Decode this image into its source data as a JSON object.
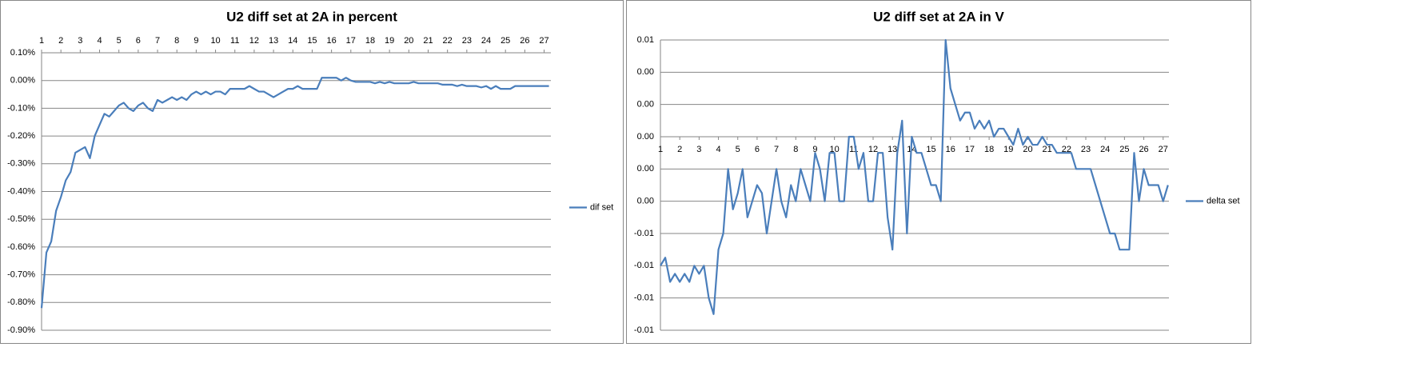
{
  "chart_data": [
    {
      "type": "line",
      "title": "U2 diff set at 2A in percent",
      "x": [
        1,
        1.25,
        1.5,
        1.75,
        2,
        2.25,
        2.5,
        2.75,
        3,
        3.25,
        3.5,
        3.75,
        4,
        4.25,
        4.5,
        4.75,
        5,
        5.25,
        5.5,
        5.75,
        6,
        6.25,
        6.5,
        6.75,
        7,
        7.25,
        7.5,
        7.75,
        8,
        8.25,
        8.5,
        8.75,
        9,
        9.25,
        9.5,
        9.75,
        10,
        10.25,
        10.5,
        10.75,
        11,
        11.25,
        11.5,
        11.75,
        12,
        12.25,
        12.5,
        12.75,
        13,
        13.25,
        13.5,
        13.75,
        14,
        14.25,
        14.5,
        14.75,
        15,
        15.25,
        15.5,
        15.75,
        16,
        16.25,
        16.5,
        16.75,
        17,
        17.25,
        17.5,
        17.75,
        18,
        18.25,
        18.5,
        18.75,
        19,
        19.25,
        19.5,
        19.75,
        20,
        20.25,
        20.5,
        20.75,
        21,
        21.25,
        21.5,
        21.75,
        22,
        22.25,
        22.5,
        22.75,
        23,
        23.25,
        23.5,
        23.75,
        24,
        24.25,
        24.5,
        24.75,
        25,
        25.25,
        25.5,
        25.75,
        26,
        26.25,
        26.5,
        26.75,
        27,
        27.25
      ],
      "series": [
        {
          "name": "dif set",
          "color": "#4a7ebb",
          "values": [
            -0.82,
            -0.62,
            -0.58,
            -0.47,
            -0.42,
            -0.36,
            -0.33,
            -0.26,
            -0.25,
            -0.24,
            -0.28,
            -0.2,
            -0.16,
            -0.12,
            -0.13,
            -0.11,
            -0.09,
            -0.08,
            -0.1,
            -0.11,
            -0.09,
            -0.08,
            -0.1,
            -0.11,
            -0.07,
            -0.08,
            -0.07,
            -0.06,
            -0.07,
            -0.06,
            -0.07,
            -0.05,
            -0.04,
            -0.05,
            -0.04,
            -0.05,
            -0.04,
            -0.04,
            -0.05,
            -0.03,
            -0.03,
            -0.03,
            -0.03,
            -0.02,
            -0.03,
            -0.04,
            -0.04,
            -0.05,
            -0.06,
            -0.05,
            -0.04,
            -0.03,
            -0.03,
            -0.02,
            -0.03,
            -0.03,
            -0.03,
            -0.03,
            0.01,
            0.01,
            0.01,
            0.01,
            0.0,
            0.01,
            0,
            -0.005,
            -0.005,
            -0.005,
            -0.005,
            -0.01,
            -0.005,
            -0.01,
            -0.005,
            -0.01,
            -0.01,
            -0.01,
            -0.01,
            -0.005,
            -0.01,
            -0.01,
            -0.01,
            -0.01,
            -0.01,
            -0.015,
            -0.015,
            -0.015,
            -0.02,
            -0.015,
            -0.02,
            -0.02,
            -0.02,
            -0.025,
            -0.02,
            -0.03,
            -0.02,
            -0.03,
            -0.03,
            -0.03,
            -0.02,
            -0.02,
            -0.02,
            -0.02,
            -0.02,
            -0.02,
            -0.02,
            -0.02
          ]
        }
      ],
      "xlim": [
        1,
        27.35
      ],
      "xticks": [
        1,
        2,
        3,
        4,
        5,
        6,
        7,
        8,
        9,
        10,
        11,
        12,
        13,
        14,
        15,
        16,
        17,
        18,
        19,
        20,
        21,
        22,
        23,
        24,
        25,
        26,
        27
      ],
      "x_axis_position": "top",
      "ylim": [
        -0.9,
        0.1
      ],
      "yticks": [
        {
          "value": 0.1,
          "label": "0.10%"
        },
        {
          "value": 0,
          "label": "0.00%"
        },
        {
          "value": -0.1,
          "label": "-0.10%"
        },
        {
          "value": -0.2,
          "label": "-0.20%"
        },
        {
          "value": -0.3,
          "label": "-0.30%"
        },
        {
          "value": -0.4,
          "label": "-0.40%"
        },
        {
          "value": -0.5,
          "label": "-0.50%"
        },
        {
          "value": -0.6,
          "label": "-0.60%"
        },
        {
          "value": -0.7,
          "label": "-0.70%"
        },
        {
          "value": -0.8,
          "label": "-0.80%"
        },
        {
          "value": -0.9,
          "label": "-0.90%"
        }
      ],
      "grid": true,
      "legend": "right"
    },
    {
      "type": "line",
      "title": "U2 diff set at 2A in V",
      "x": [
        1,
        1.25,
        1.5,
        1.75,
        2,
        2.25,
        2.5,
        2.75,
        3,
        3.25,
        3.5,
        3.75,
        4,
        4.25,
        4.5,
        4.75,
        5,
        5.25,
        5.5,
        5.75,
        6,
        6.25,
        6.5,
        6.75,
        7,
        7.25,
        7.5,
        7.75,
        8,
        8.25,
        8.5,
        8.75,
        9,
        9.25,
        9.5,
        9.75,
        10,
        10.25,
        10.5,
        10.75,
        11,
        11.25,
        11.5,
        11.75,
        12,
        12.25,
        12.5,
        12.75,
        13,
        13.25,
        13.5,
        13.75,
        14,
        14.25,
        14.5,
        14.75,
        15,
        15.25,
        15.5,
        15.75,
        16,
        16.25,
        16.5,
        16.75,
        17,
        17.25,
        17.5,
        17.75,
        18,
        18.25,
        18.5,
        18.75,
        19,
        19.25,
        19.5,
        19.75,
        20,
        20.25,
        20.5,
        20.75,
        21,
        21.25,
        21.5,
        21.75,
        22,
        22.25,
        22.5,
        22.75,
        23,
        23.25,
        23.5,
        23.75,
        24,
        24.25,
        24.5,
        24.75,
        25,
        25.25,
        25.5,
        25.75,
        26,
        26.25,
        26.5,
        26.75,
        27,
        27.25
      ],
      "series": [
        {
          "name": "delta set",
          "color": "#4a7ebb",
          "values": [
            -0.008,
            -0.0075,
            -0.009,
            -0.0085,
            -0.009,
            -0.0085,
            -0.009,
            -0.008,
            -0.0085,
            -0.008,
            -0.01,
            -0.011,
            -0.007,
            -0.006,
            -0.002,
            -0.0045,
            -0.0035,
            -0.002,
            -0.005,
            -0.004,
            -0.003,
            -0.0035,
            -0.006,
            -0.004,
            -0.002,
            -0.004,
            -0.005,
            -0.003,
            -0.004,
            -0.002,
            -0.003,
            -0.004,
            -0.001,
            -0.002,
            -0.004,
            -0.001,
            -0.001,
            -0.004,
            -0.004,
            0,
            0,
            -0.002,
            -0.001,
            -0.004,
            -0.004,
            -0.001,
            -0.001,
            -0.005,
            -0.007,
            -0.001,
            0.001,
            -0.006,
            0,
            -0.001,
            -0.001,
            -0.002,
            -0.003,
            -0.003,
            -0.004,
            0.006,
            0.003,
            0.002,
            0.001,
            0.0015,
            0.0015,
            0.0005,
            0.001,
            0.0005,
            0.001,
            0,
            0.0005,
            0.0005,
            0,
            -0.0005,
            0.0005,
            -0.0005,
            0,
            -0.0005,
            -0.0005,
            0,
            -0.0005,
            -0.0005,
            -0.001,
            -0.001,
            -0.001,
            -0.001,
            -0.002,
            -0.002,
            -0.002,
            -0.002,
            -0.003,
            -0.004,
            -0.005,
            -0.006,
            -0.006,
            -0.007,
            -0.007,
            -0.007,
            -0.001,
            -0.004,
            -0.002,
            -0.003,
            -0.003,
            -0.003,
            -0.004,
            -0.003
          ]
        }
      ],
      "xlim": [
        1,
        27.3
      ],
      "xticks": [
        1,
        2,
        3,
        4,
        5,
        6,
        7,
        8,
        9,
        10,
        11,
        12,
        13,
        14,
        15,
        16,
        17,
        18,
        19,
        20,
        21,
        22,
        23,
        24,
        25,
        26,
        27
      ],
      "x_axis_position": "zero",
      "ylim": [
        -0.012,
        0.006
      ],
      "yticks": [
        {
          "value": 0.006,
          "label": "0.01"
        },
        {
          "value": 0.004,
          "label": "0.00"
        },
        {
          "value": 0.002,
          "label": "0.00"
        },
        {
          "value": 0,
          "label": "0.00"
        },
        {
          "value": -0.002,
          "label": "0.00"
        },
        {
          "value": -0.004,
          "label": "0.00"
        },
        {
          "value": -0.006,
          "label": "-0.01"
        },
        {
          "value": -0.008,
          "label": "-0.01"
        },
        {
          "value": -0.01,
          "label": "-0.01"
        },
        {
          "value": -0.012,
          "label": "-0.01"
        }
      ],
      "grid": true,
      "legend": "right"
    }
  ]
}
